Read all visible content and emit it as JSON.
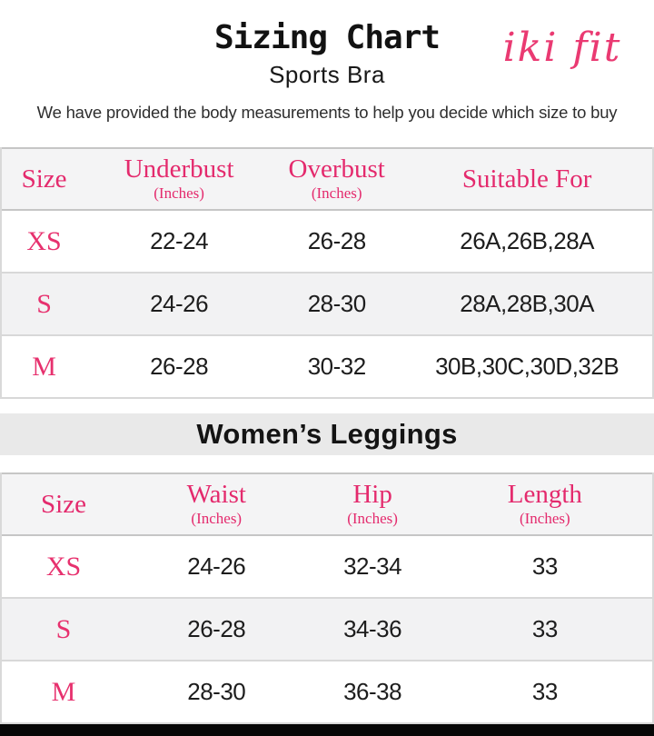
{
  "header": {
    "title": "Sizing Chart",
    "subtitle": "Sports Bra",
    "brand_logo": "iki fit",
    "intro": "We have provided the body measurements to help you decide which size to buy"
  },
  "colors": {
    "accent_pink": "#e42a6d",
    "logo_pink": "#ea3a72",
    "table_header_bg": "#f4f4f5",
    "section_band_bg": "#e9e9e9",
    "alt_row_bg": "#f2f2f3",
    "text_black": "#141414",
    "bottom_bar_black": "#060606"
  },
  "chart_data": [
    {
      "type": "table",
      "title": "Sports Bra",
      "columns": [
        {
          "label": "Size",
          "unit": ""
        },
        {
          "label": "Underbust",
          "unit": "(Inches)"
        },
        {
          "label": "Overbust",
          "unit": "(Inches)"
        },
        {
          "label": "Suitable For",
          "unit": ""
        }
      ],
      "rows": [
        [
          "XS",
          "22-24",
          "26-28",
          "26A,26B,28A"
        ],
        [
          "S",
          "24-26",
          "28-30",
          "28A,28B,30A"
        ],
        [
          "M",
          "26-28",
          "30-32",
          "30B,30C,30D,32B"
        ]
      ]
    },
    {
      "type": "table",
      "title": "Women’s Leggings",
      "columns": [
        {
          "label": "Size",
          "unit": ""
        },
        {
          "label": "Waist",
          "unit": "(Inches)"
        },
        {
          "label": "Hip",
          "unit": "(Inches)"
        },
        {
          "label": "Length",
          "unit": "(Inches)"
        }
      ],
      "rows": [
        [
          "XS",
          "24-26",
          "32-34",
          "33"
        ],
        [
          "S",
          "26-28",
          "34-36",
          "33"
        ],
        [
          "M",
          "28-30",
          "36-38",
          "33"
        ]
      ]
    }
  ]
}
